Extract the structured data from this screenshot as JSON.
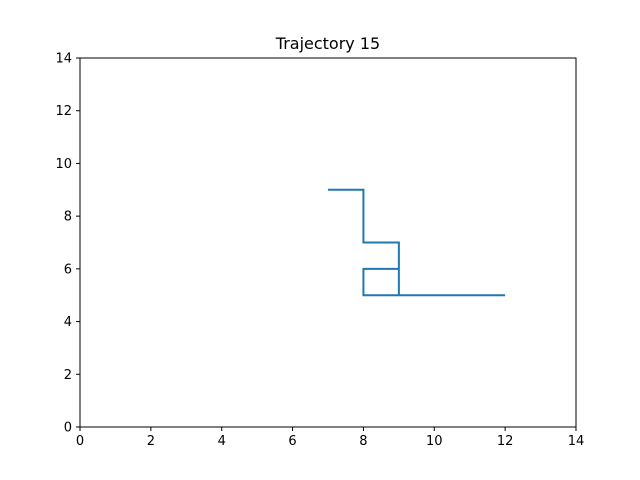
{
  "chart_data": {
    "type": "line",
    "title": "Trajectory 15",
    "xlabel": "",
    "ylabel": "",
    "xlim": [
      0,
      14
    ],
    "ylim": [
      0,
      14
    ],
    "grid": false,
    "x_ticks": [
      0,
      2,
      4,
      6,
      8,
      10,
      12,
      14
    ],
    "y_ticks": [
      0,
      2,
      4,
      6,
      8,
      10,
      12,
      14
    ],
    "series": [
      {
        "color": "#1f77b4",
        "points": [
          [
            7,
            9
          ],
          [
            8,
            9
          ],
          [
            8,
            7
          ],
          [
            9,
            7
          ],
          [
            9,
            6
          ],
          [
            8,
            6
          ],
          [
            8,
            5
          ],
          [
            9,
            5
          ],
          [
            9,
            6
          ],
          [
            9,
            5
          ],
          [
            12,
            5
          ]
        ]
      }
    ]
  }
}
